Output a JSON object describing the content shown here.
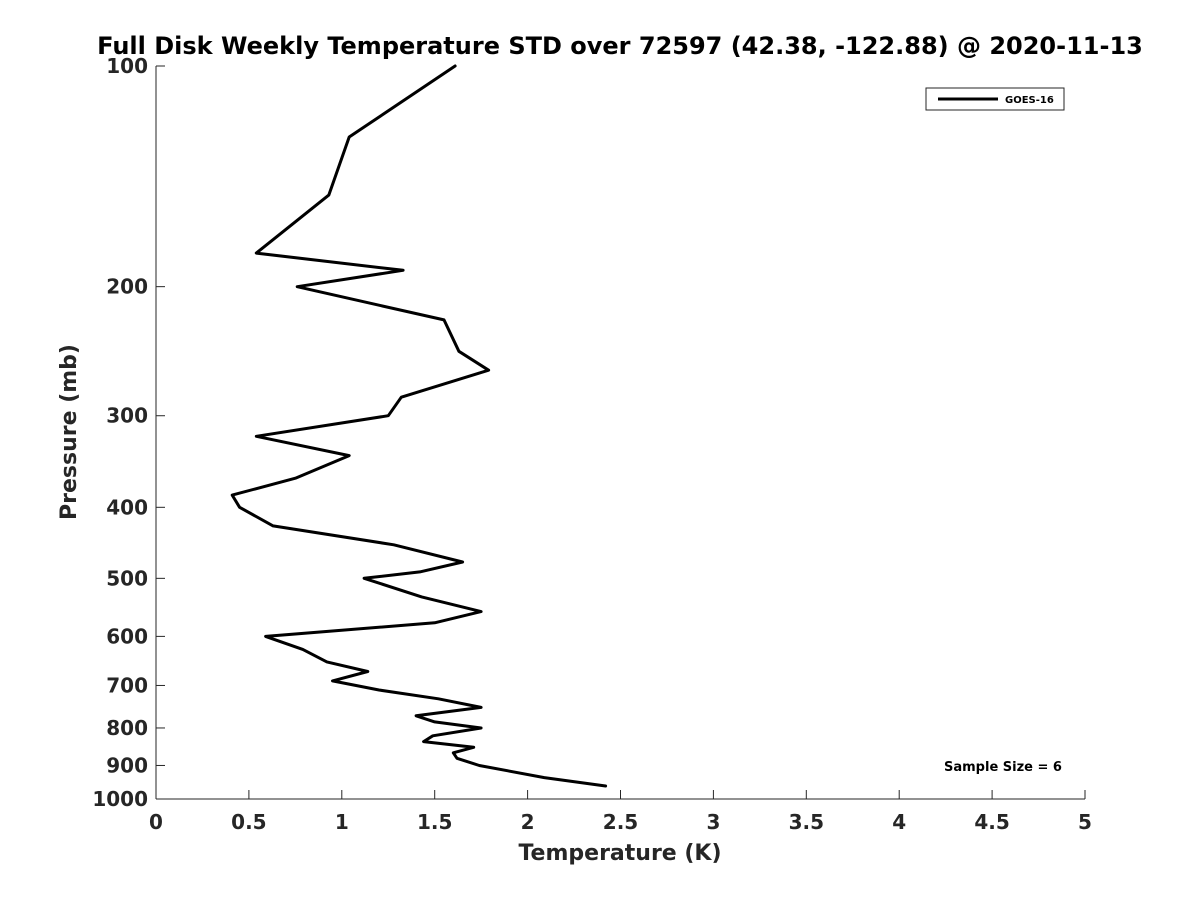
{
  "chart_data": {
    "type": "line",
    "title": "Full Disk Weekly Temperature STD over 72597 (42.38, -122.88) @ 2020-11-13",
    "xlabel": "Temperature (K)",
    "ylabel": "Pressure (mb)",
    "xlim": [
      0,
      5
    ],
    "ylim": [
      100,
      1000
    ],
    "y_scale": "log",
    "y_direction": "reversed",
    "x_ticks": [
      "0",
      "0.5",
      "1",
      "1.5",
      "2",
      "2.5",
      "3",
      "3.5",
      "4",
      "4.5",
      "5"
    ],
    "y_ticks": [
      "100",
      "200",
      "300",
      "400",
      "500",
      "600",
      "700",
      "800",
      "900",
      "1000"
    ],
    "grid": false,
    "legend_position": "top-right",
    "annotation": "Sample Size = 6",
    "series": [
      {
        "name": "GOES-16",
        "color": "#000000",
        "points": [
          [
            1.61,
            100
          ],
          [
            1.04,
            125
          ],
          [
            0.93,
            150
          ],
          [
            0.54,
            180
          ],
          [
            1.33,
            190
          ],
          [
            0.76,
            200
          ],
          [
            1.55,
            222
          ],
          [
            1.63,
            245
          ],
          [
            1.79,
            260
          ],
          [
            1.32,
            283
          ],
          [
            1.25,
            300
          ],
          [
            0.54,
            320
          ],
          [
            1.04,
            340
          ],
          [
            0.75,
            365
          ],
          [
            0.41,
            385
          ],
          [
            0.45,
            400
          ],
          [
            0.63,
            424
          ],
          [
            1.28,
            450
          ],
          [
            1.65,
            475
          ],
          [
            1.42,
            490
          ],
          [
            1.12,
            500
          ],
          [
            1.43,
            530
          ],
          [
            1.75,
            555
          ],
          [
            1.5,
            575
          ],
          [
            0.59,
            600
          ],
          [
            0.79,
            625
          ],
          [
            0.92,
            650
          ],
          [
            1.14,
            670
          ],
          [
            0.95,
            690
          ],
          [
            1.2,
            710
          ],
          [
            1.52,
            730
          ],
          [
            1.75,
            750
          ],
          [
            1.4,
            770
          ],
          [
            1.5,
            785
          ],
          [
            1.75,
            800
          ],
          [
            1.49,
            820
          ],
          [
            1.44,
            835
          ],
          [
            1.71,
            850
          ],
          [
            1.6,
            865
          ],
          [
            1.62,
            880
          ],
          [
            1.74,
            900
          ],
          [
            2.09,
            935
          ],
          [
            2.42,
            960
          ]
        ]
      }
    ]
  }
}
